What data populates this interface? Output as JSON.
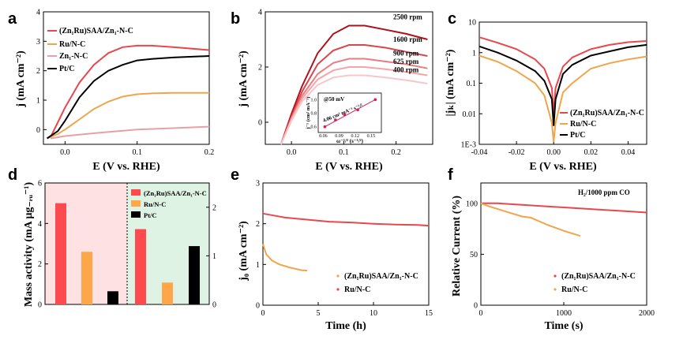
{
  "chart_data": [
    {
      "panel": "a",
      "type": "line",
      "xlabel": "E (V vs. RHE)",
      "ylabel": "j (mA cm⁻²)",
      "xlim": [
        -0.03,
        0.2
      ],
      "ylim": [
        -0.5,
        4
      ],
      "xticks": [
        "0.0",
        "0.1",
        "0.2"
      ],
      "yticks": [
        "0",
        "1",
        "2",
        "3",
        "4"
      ],
      "legend_position": "top-left",
      "series": [
        {
          "name": "(Zn₁Ru)SAA/Zn₁-N-C",
          "color": "#e8474d",
          "x": [
            -0.02,
            -0.01,
            0,
            0.02,
            0.04,
            0.06,
            0.08,
            0.1,
            0.12,
            0.15,
            0.2
          ],
          "y": [
            -0.25,
            0.25,
            0.75,
            1.6,
            2.2,
            2.6,
            2.8,
            2.85,
            2.85,
            2.8,
            2.7
          ]
        },
        {
          "name": "Ru/N-C",
          "color": "#f0a54a",
          "x": [
            -0.025,
            -0.01,
            0,
            0.02,
            0.04,
            0.06,
            0.08,
            0.1,
            0.12,
            0.15,
            0.2
          ],
          "y": [
            -0.3,
            -0.15,
            0,
            0.35,
            0.7,
            0.95,
            1.12,
            1.2,
            1.23,
            1.25,
            1.25
          ]
        },
        {
          "name": "Zn₁-N-C",
          "color": "#e8a0a5",
          "x": [
            -0.02,
            0,
            0.05,
            0.1,
            0.15,
            0.2
          ],
          "y": [
            -0.3,
            -0.22,
            -0.1,
            0.0,
            0.05,
            0.1
          ]
        },
        {
          "name": "Pt/C",
          "color": "#000000",
          "x": [
            -0.025,
            -0.01,
            0,
            0.02,
            0.04,
            0.06,
            0.08,
            0.1,
            0.12,
            0.15,
            0.2
          ],
          "y": [
            -0.3,
            -0.05,
            0.3,
            1.1,
            1.65,
            2.0,
            2.2,
            2.35,
            2.4,
            2.45,
            2.5
          ]
        }
      ]
    },
    {
      "panel": "b",
      "type": "line",
      "xlabel": "E (V vs. RHE)",
      "ylabel": "j (mA cm⁻²)",
      "xlim": [
        -0.05,
        0.27
      ],
      "ylim": [
        -0.8,
        4
      ],
      "xticks": [
        "0.0",
        "0.1",
        "0.2"
      ],
      "yticks": [
        "0",
        "2",
        "4"
      ],
      "series": [
        {
          "name": "2500 rpm",
          "color": "#b0101a",
          "x": [
            -0.02,
            0,
            0.02,
            0.05,
            0.08,
            0.11,
            0.14,
            0.18,
            0.22,
            0.26
          ],
          "y": [
            -0.8,
            0.3,
            1.3,
            2.5,
            3.2,
            3.5,
            3.5,
            3.35,
            3.2,
            3.0
          ]
        },
        {
          "name": "1600 rpm",
          "color": "#d9454c",
          "x": [
            -0.02,
            0,
            0.02,
            0.05,
            0.08,
            0.11,
            0.14,
            0.18,
            0.22,
            0.26
          ],
          "y": [
            -0.8,
            0.2,
            1.1,
            2.1,
            2.6,
            2.8,
            2.8,
            2.7,
            2.55,
            2.4
          ]
        },
        {
          "name": "900 rpm",
          "color": "#ea7b80",
          "x": [
            -0.02,
            0,
            0.02,
            0.05,
            0.08,
            0.11,
            0.14,
            0.18,
            0.22,
            0.26
          ],
          "y": [
            -0.8,
            0.15,
            0.95,
            1.75,
            2.15,
            2.3,
            2.3,
            2.2,
            2.1,
            1.95
          ]
        },
        {
          "name": "625 rpm",
          "color": "#f4a5a9",
          "x": [
            -0.02,
            0,
            0.02,
            0.05,
            0.08,
            0.11,
            0.14,
            0.18,
            0.22,
            0.26
          ],
          "y": [
            -0.8,
            0.1,
            0.85,
            1.55,
            1.88,
            2.0,
            2.0,
            1.92,
            1.82,
            1.7
          ]
        },
        {
          "name": "400 rpm",
          "color": "#f8c6c9",
          "x": [
            -0.02,
            0,
            0.02,
            0.05,
            0.08,
            0.11,
            0.14,
            0.18,
            0.22,
            0.26
          ],
          "y": [
            -0.8,
            0.05,
            0.75,
            1.35,
            1.62,
            1.7,
            1.7,
            1.62,
            1.52,
            1.4
          ]
        }
      ],
      "inset": {
        "annotation": "@50 mV",
        "fit_label": "4.06 cm² mA⁻¹ s⁻¹/²",
        "xlabel": "ω⁻¹/² (s⁻¹/²)",
        "ylabel": "j⁻¹ (cm² mA⁻¹)",
        "xticks": [
          "0.06",
          "0.09",
          "0.12",
          "0.15"
        ],
        "yticks": [
          "0.6",
          "0.8",
          "1.0"
        ],
        "x": [
          0.063,
          0.083,
          0.1,
          0.125,
          0.158
        ],
        "y": [
          0.6,
          0.7,
          0.78,
          0.85,
          1.0
        ]
      }
    },
    {
      "panel": "c",
      "type": "line",
      "xlabel": "E (V vs. RHE)",
      "ylabel": "|jₖ| (mA cm⁻²)",
      "yscale": "log",
      "xlim": [
        -0.04,
        0.05
      ],
      "ylim": [
        0.001,
        10
      ],
      "xticks": [
        "-0.04",
        "-0.02",
        "0.00",
        "0.02",
        "0.04"
      ],
      "yticks": [
        "1E-3",
        "0.01",
        "0.1",
        "1",
        "10"
      ],
      "legend_position": "bottom-right",
      "series": [
        {
          "name": "(Zn₁Ru)SAA/Zn₁-N-C",
          "color": "#e8474d",
          "x": [
            -0.04,
            -0.03,
            -0.02,
            -0.01,
            -0.005,
            -0.001,
            0,
            0.001,
            0.005,
            0.01,
            0.02,
            0.03,
            0.04,
            0.05
          ],
          "y": [
            3.2,
            2.1,
            1.3,
            0.6,
            0.3,
            0.07,
            0.01,
            0.07,
            0.35,
            0.7,
            1.3,
            1.8,
            2.2,
            2.4
          ]
        },
        {
          "name": "Ru/N-C",
          "color": "#f0a54a",
          "x": [
            -0.04,
            -0.03,
            -0.02,
            -0.01,
            -0.005,
            -0.001,
            0,
            0.001,
            0.005,
            0.01,
            0.02,
            0.03,
            0.04,
            0.05
          ],
          "y": [
            0.8,
            0.5,
            0.25,
            0.1,
            0.04,
            0.005,
            0.0012,
            0.005,
            0.05,
            0.1,
            0.3,
            0.45,
            0.6,
            0.75
          ]
        },
        {
          "name": "Pt/C",
          "color": "#000000",
          "x": [
            -0.04,
            -0.03,
            -0.02,
            -0.01,
            -0.005,
            -0.001,
            0,
            0.001,
            0.005,
            0.01,
            0.02,
            0.03,
            0.04,
            0.05
          ],
          "y": [
            1.6,
            1.0,
            0.55,
            0.25,
            0.12,
            0.03,
            0.004,
            0.03,
            0.2,
            0.4,
            0.8,
            1.1,
            1.5,
            1.8
          ]
        }
      ]
    },
    {
      "panel": "d",
      "type": "bar",
      "ylabel": "Mass activity (mA μg₋ᵣᵤ⁻¹)",
      "ylim_left": [
        0,
        6
      ],
      "ylim_right": [
        0,
        2.5
      ],
      "yticks_left": [
        "0",
        "2",
        "4",
        "6"
      ],
      "yticks_right": [
        "0",
        "1",
        "2"
      ],
      "legend_position": "top-right",
      "series": [
        {
          "name": "(Zn₁Ru)SAA/Zn₁-N-C",
          "color": "#fd4a4f",
          "values_left": 5.0,
          "values_right": 1.55
        },
        {
          "name": "Ru/N-C",
          "color": "#fea64a",
          "values_left": 2.6,
          "values_right": 0.45
        },
        {
          "name": "Pt/C",
          "color": "#000000",
          "values_left": 0.65,
          "values_right": 1.2
        }
      ]
    },
    {
      "panel": "e",
      "type": "line",
      "xlabel": "Time (h)",
      "ylabel": "j₀ (mA cm⁻²)",
      "xlim": [
        0,
        15
      ],
      "ylim": [
        0,
        3
      ],
      "xticks": [
        "0",
        "5",
        "10",
        "15"
      ],
      "yticks": [
        "0",
        "1",
        "2",
        "3"
      ],
      "legend_position": "bottom-right",
      "series": [
        {
          "name": "(Zn₁Ru)SAA/Zn₁-N-C",
          "color": "#f0a54a",
          "x": [
            0,
            0.3,
            0.8,
            1.5,
            2.5,
            3.5,
            4
          ],
          "y": [
            1.5,
            1.25,
            1.1,
            1.0,
            0.92,
            0.86,
            0.85
          ]
        },
        {
          "name": "Ru/N-C",
          "color": "#e8474d",
          "x": [
            0,
            1,
            2,
            4,
            6,
            8,
            10,
            12,
            14,
            15
          ],
          "y": [
            2.25,
            2.2,
            2.15,
            2.1,
            2.05,
            2.03,
            2.0,
            1.98,
            1.97,
            1.95
          ]
        }
      ]
    },
    {
      "panel": "f",
      "type": "line",
      "xlabel": "Time (s)",
      "ylabel": "Relative Current (%)",
      "annotation": "H₂/1000 ppm CO",
      "xlim": [
        0,
        2000
      ],
      "ylim": [
        0,
        120
      ],
      "xticks": [
        "0",
        "1000",
        "2000"
      ],
      "yticks": [
        "0",
        "50",
        "100"
      ],
      "legend_position": "bottom-right",
      "series": [
        {
          "name": "(Zn₁Ru)SAA/Zn₁-N-C",
          "color": "#e8474d",
          "x": [
            0,
            200,
            500,
            800,
            1100,
            1400,
            1700,
            2000
          ],
          "y": [
            100,
            100,
            98.5,
            97,
            95.5,
            94,
            92.5,
            91
          ]
        },
        {
          "name": "Ru/N-C",
          "color": "#f0a54a",
          "x": [
            0,
            100,
            300,
            500,
            600,
            800,
            1000,
            1200
          ],
          "y": [
            100,
            97,
            92,
            87,
            86,
            79,
            73,
            68
          ]
        }
      ]
    }
  ]
}
